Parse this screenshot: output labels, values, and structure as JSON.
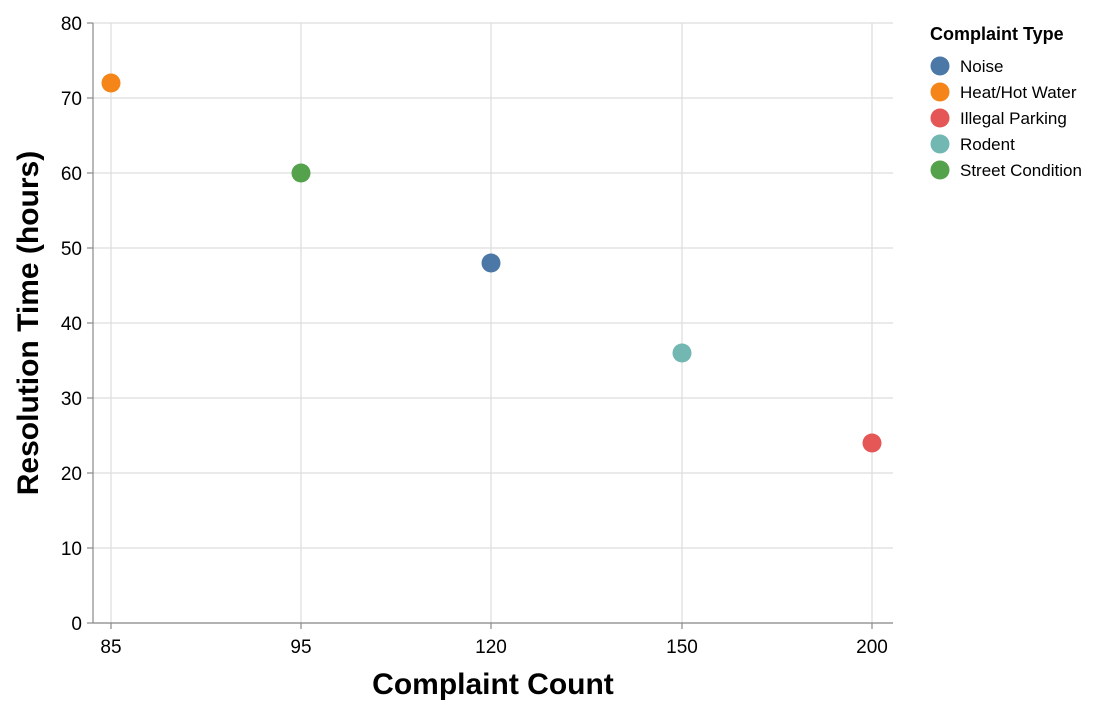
{
  "chart_data": {
    "type": "scatter",
    "xlabel": "Complaint Count",
    "ylabel": "Resolution Time (hours)",
    "x_scale": "ordinal",
    "x_categories": [
      "85",
      "95",
      "120",
      "150",
      "200"
    ],
    "ylim": [
      0,
      80
    ],
    "y_ticks": [
      0,
      10,
      20,
      30,
      40,
      50,
      60,
      70,
      80
    ],
    "grid": true,
    "legend": {
      "title": "Complaint Type",
      "placement": "top-right"
    },
    "series": [
      {
        "name": "Noise",
        "color": "#4c78a8",
        "x": "120",
        "y": 48
      },
      {
        "name": "Heat/Hot Water",
        "color": "#f58518",
        "x": "85",
        "y": 72
      },
      {
        "name": "Illegal Parking",
        "color": "#e45756",
        "x": "200",
        "y": 24
      },
      {
        "name": "Rodent",
        "color": "#72b7b2",
        "x": "150",
        "y": 36
      },
      {
        "name": "Street Condition",
        "color": "#54a24b",
        "x": "95",
        "y": 60
      }
    ]
  }
}
